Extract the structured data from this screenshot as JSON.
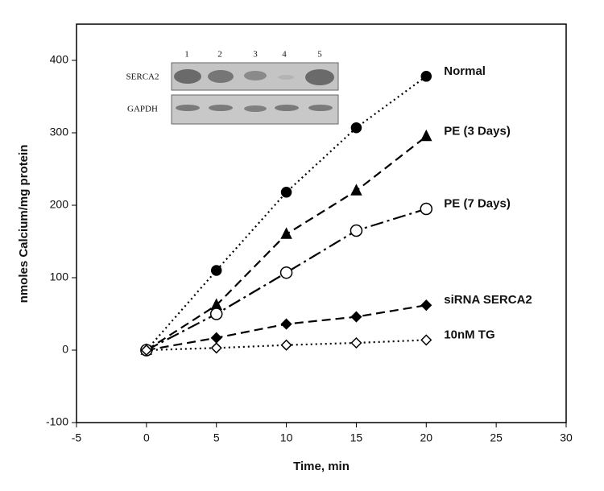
{
  "chart_data": {
    "type": "line",
    "x_label": "Time, min",
    "y_label": "nmoles Calcium/mg protein",
    "x": [
      0,
      5,
      10,
      15,
      20
    ],
    "xlim": [
      -5,
      30
    ],
    "xticks": [
      -5,
      0,
      5,
      10,
      15,
      20,
      25,
      30
    ],
    "ylim": [
      -100,
      450
    ],
    "yticks": [
      -100,
      0,
      100,
      200,
      300,
      400
    ],
    "series": [
      {
        "name": "Normal",
        "color": "#000000",
        "marker": "filled-circle",
        "dash": "dotted",
        "values": [
          0,
          110,
          218,
          307,
          378
        ]
      },
      {
        "name": "PE (3 Days)",
        "color": "#000000",
        "marker": "filled-triangle",
        "dash": "dashed",
        "values": [
          0,
          62,
          160,
          220,
          295
        ]
      },
      {
        "name": "PE (7 Days)",
        "color": "#000000",
        "marker": "open-circle",
        "dash": "dash-dot",
        "values": [
          0,
          50,
          107,
          165,
          195
        ]
      },
      {
        "name": "siRNA SERCA2",
        "color": "#000000",
        "marker": "filled-diamond",
        "dash": "dashed",
        "values": [
          0,
          17,
          36,
          46,
          62
        ]
      },
      {
        "name": "10nM TG",
        "color": "#000000",
        "marker": "open-diamond",
        "dash": "dotted",
        "values": [
          0,
          3,
          7,
          10,
          14
        ]
      }
    ],
    "inset": {
      "lanes": [
        "1",
        "2",
        "3",
        "4",
        "5"
      ],
      "rows": [
        "SERCA2",
        "GAPDH"
      ]
    }
  }
}
